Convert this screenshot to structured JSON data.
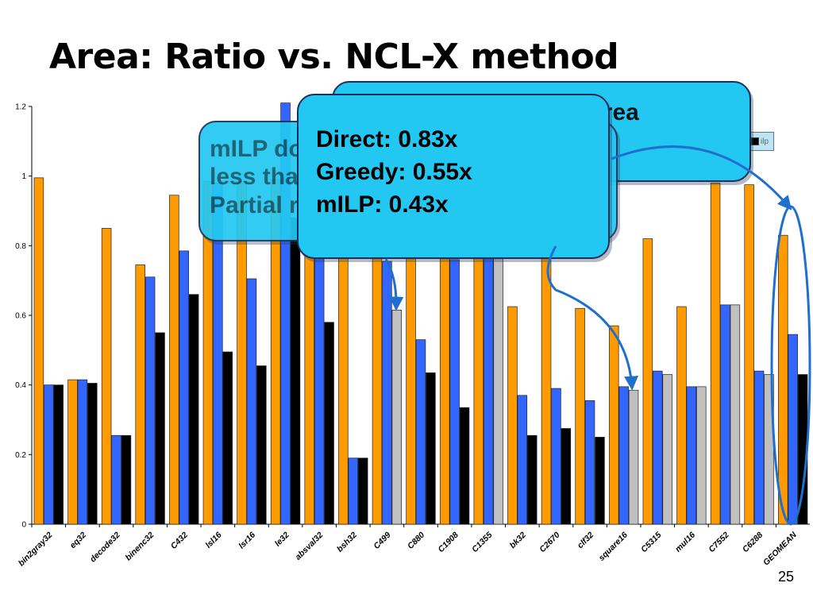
{
  "slide": {
    "title": "Area: Ratio vs. NCL-X method",
    "page_number": "25"
  },
  "callouts": {
    "greedy_text": "Greedy: 2.83x NCL-X area",
    "milp_lines": [
      "mILP does not finish in",
      "less than 1 hour",
      "Partial results"
    ],
    "direct_lines": [
      "Direct: 0.83x",
      "Greedy: 0.55x",
      "mILP: 0.43x"
    ]
  },
  "colors": {
    "ratio": "#ff9b00",
    "direct": "#3366ff",
    "greedy": "#000000",
    "ilp_partial": "#c0c0c0",
    "callout_fill": "#23c8f2",
    "arrow": "#1f6fcf"
  },
  "chart_data": {
    "type": "bar",
    "ylim": [
      0,
      1.2
    ],
    "yticks": [
      "0",
      "0.2",
      "0.4",
      "0.6",
      "0.8",
      "1",
      "1.2"
    ],
    "grid": false,
    "legend_position": "top-right",
    "categories": [
      "bin2gray32",
      "eq32",
      "decode32",
      "binenc32",
      "C432",
      "lsl16",
      "lsr16",
      "le32",
      "absval32",
      "bsh32",
      "C499",
      "C880",
      "C1908",
      "C1355",
      "bk32",
      "C2670",
      "clf32",
      "square16",
      "C5315",
      "mul16",
      "C7552",
      "C6288",
      "GEOMEAN"
    ],
    "legend": [
      "direct",
      "greedy",
      "ilp"
    ],
    "series": [
      {
        "values": [
          0.995,
          0.415,
          0.85,
          0.745,
          0.945,
          0.985,
          0.985,
          0.99,
          0.99,
          0.985,
          0.985,
          0.985,
          0.985,
          0.985,
          0.625,
          0.985,
          0.62,
          0.57,
          0.82,
          0.625,
          0.98,
          0.975,
          0.83
        ]
      },
      {
        "name": "direct",
        "values": [
          0.4,
          0.415,
          0.255,
          0.71,
          0.785,
          0.98,
          0.705,
          1.21,
          0.985,
          0.19,
          0.755,
          0.53,
          0.76,
          0.79,
          0.37,
          0.39,
          0.355,
          0.395,
          0.44,
          0.395,
          0.63,
          0.44,
          0.545
        ]
      },
      {
        "name": "greedy",
        "values": [
          0.4,
          0.405,
          0.255,
          0.55,
          0.66,
          0.495,
          0.455,
          0.88,
          0.58,
          0.19,
          null,
          0.435,
          0.335,
          null,
          0.255,
          0.275,
          0.25,
          null,
          null,
          null,
          null,
          null,
          0.43
        ]
      },
      {
        "name": "ilp",
        "values": [
          null,
          null,
          null,
          null,
          null,
          null,
          null,
          null,
          null,
          null,
          0.615,
          null,
          null,
          0.79,
          null,
          null,
          null,
          0.385,
          0.43,
          0.395,
          0.63,
          0.43,
          null
        ]
      }
    ]
  }
}
